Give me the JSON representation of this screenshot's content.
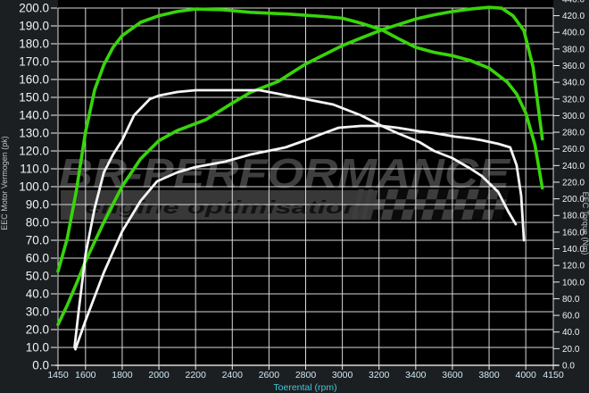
{
  "colors": {
    "plot_bg": "#000000",
    "margin_bg": "#1c1f22",
    "grid": "#d9d9d9",
    "axis_text": "#f2f2f2",
    "x_tick_text": "#cfe9f2",
    "xlabel_text": "#3ec9da",
    "axis_title_text": "#b9c2c5",
    "torque_color": "#38d40a",
    "power_color": "#f5f5f5",
    "watermark_text": "#3f3f3f",
    "watermark_band": "#383838",
    "watermark_subtitle": "#121212",
    "checker_dark": "#0b0b0b",
    "checker_light": "#3d3d3d"
  },
  "chart_data": {
    "type": "line",
    "title": "",
    "xlabel": "Toerental (rpm)",
    "ylabel_left": "EEC Motor Vermogen (pk)",
    "ylabel_right": "EEC Torque (Nm)",
    "xlim": [
      1450,
      4150
    ],
    "ylim_left": [
      0,
      200
    ],
    "ylim_right": [
      0,
      440
    ],
    "grid": true,
    "legend": "none",
    "x_tick_values": [
      1450,
      1600,
      1800,
      2000,
      2200,
      2400,
      2600,
      2800,
      3000,
      3200,
      3400,
      3600,
      3800,
      4000,
      4150
    ],
    "x_tick_labels": [
      "1450",
      "1600",
      "1800",
      "2000",
      "2200",
      "2400",
      "2600",
      "2800",
      "3000",
      "3200",
      "3400",
      "3600",
      "3800",
      "4000",
      "4150"
    ],
    "left_tick_values": [
      0,
      10,
      20,
      30,
      40,
      50,
      60,
      70,
      80,
      90,
      100,
      110,
      120,
      130,
      140,
      150,
      160,
      170,
      180,
      190,
      200
    ],
    "left_tick_labels": [
      "0.0",
      "10.0",
      "20.0",
      "30.0",
      "40.0",
      "50.0",
      "60.0",
      "70.0",
      "80.0",
      "90.0",
      "100.0",
      "110.0",
      "120.0",
      "130.0",
      "140.0",
      "150.0",
      "160.0",
      "170.0",
      "180.0",
      "190.0",
      "200.0"
    ],
    "right_tick_values": [
      0,
      20,
      40,
      60,
      80,
      100,
      120,
      140,
      160,
      180,
      200,
      220,
      240,
      260,
      280,
      300,
      320,
      340,
      360,
      380,
      400,
      420,
      440
    ],
    "right_tick_labels": [
      "0.0",
      "20.0",
      "40.0",
      "60.0",
      "80.0",
      "100.0",
      "120.0",
      "140.0",
      "160.0",
      "180.0",
      "200.0",
      "220.0",
      "240.0",
      "260.0",
      "280.0",
      "300.0",
      "320.0",
      "340.0",
      "360.0",
      "380.0",
      "400.0",
      "420.0",
      "440.0"
    ],
    "watermark": {
      "brand": "BR-Performance",
      "subtitle": "engine optimisation"
    },
    "series": [
      {
        "name": "torque-run-1",
        "axis": "right",
        "unit": "Nm",
        "color_key": "torque_color",
        "width": 3.6,
        "points": [
          [
            1450,
            113
          ],
          [
            1500,
            152
          ],
          [
            1550,
            210
          ],
          [
            1600,
            280
          ],
          [
            1650,
            331
          ],
          [
            1700,
            361
          ],
          [
            1750,
            382
          ],
          [
            1800,
            396
          ],
          [
            1900,
            412
          ],
          [
            2000,
            420
          ],
          [
            2100,
            425
          ],
          [
            2200,
            428
          ],
          [
            2350,
            427
          ],
          [
            2500,
            424
          ],
          [
            2700,
            422
          ],
          [
            2900,
            419
          ],
          [
            3000,
            417
          ],
          [
            3100,
            411
          ],
          [
            3215,
            403
          ],
          [
            3300,
            393
          ],
          [
            3400,
            382
          ],
          [
            3500,
            376
          ],
          [
            3600,
            372
          ],
          [
            3700,
            366
          ],
          [
            3800,
            357
          ],
          [
            3900,
            340
          ],
          [
            3950,
            326
          ],
          [
            4000,
            303
          ],
          [
            4050,
            265
          ],
          [
            4090,
            213
          ]
        ]
      },
      {
        "name": "torque-run-2",
        "axis": "right",
        "unit": "Nm",
        "color_key": "torque_color",
        "width": 3.6,
        "points": [
          [
            1450,
            49
          ],
          [
            1500,
            72
          ],
          [
            1550,
            98
          ],
          [
            1600,
            125
          ],
          [
            1700,
            172
          ],
          [
            1800,
            215
          ],
          [
            1900,
            248
          ],
          [
            2000,
            270
          ],
          [
            2100,
            282
          ],
          [
            2255,
            295
          ],
          [
            2400,
            315
          ],
          [
            2500,
            328
          ],
          [
            2650,
            341
          ],
          [
            2800,
            362
          ],
          [
            3000,
            384
          ],
          [
            3100,
            393
          ],
          [
            3215,
            403
          ],
          [
            3300,
            409
          ],
          [
            3400,
            416
          ],
          [
            3500,
            421
          ],
          [
            3600,
            425
          ],
          [
            3700,
            428
          ],
          [
            3800,
            430
          ],
          [
            3870,
            429
          ],
          [
            3930,
            420
          ],
          [
            3990,
            402
          ],
          [
            4040,
            358
          ],
          [
            4090,
            272
          ]
        ]
      },
      {
        "name": "power-run-1",
        "axis": "left",
        "unit": "pk",
        "color_key": "power_color",
        "width": 2.8,
        "points": [
          [
            1540,
            10
          ],
          [
            1560,
            28
          ],
          [
            1580,
            45
          ],
          [
            1600,
            62
          ],
          [
            1650,
            88
          ],
          [
            1700,
            108
          ],
          [
            1750,
            118
          ],
          [
            1800,
            126
          ],
          [
            1865,
            140
          ],
          [
            1950,
            149
          ],
          [
            2000,
            151
          ],
          [
            2100,
            153
          ],
          [
            2200,
            154
          ],
          [
            2400,
            154
          ],
          [
            2550,
            154
          ],
          [
            2650,
            152
          ],
          [
            2750,
            150
          ],
          [
            2850,
            148
          ],
          [
            2950,
            146
          ],
          [
            3000,
            144
          ],
          [
            3100,
            140
          ],
          [
            3215,
            134
          ],
          [
            3300,
            130
          ],
          [
            3420,
            125
          ],
          [
            3500,
            120
          ],
          [
            3600,
            116
          ],
          [
            3700,
            110
          ],
          [
            3760,
            106
          ],
          [
            3850,
            97
          ],
          [
            3905,
            86
          ],
          [
            3945,
            79
          ]
        ]
      },
      {
        "name": "power-run-2",
        "axis": "left",
        "unit": "pk",
        "color_key": "power_color",
        "width": 2.8,
        "points": [
          [
            1545,
            9
          ],
          [
            1600,
            25
          ],
          [
            1700,
            52
          ],
          [
            1800,
            75
          ],
          [
            1900,
            92
          ],
          [
            1990,
            103
          ],
          [
            2100,
            108
          ],
          [
            2200,
            111
          ],
          [
            2360,
            114
          ],
          [
            2500,
            118
          ],
          [
            2690,
            122
          ],
          [
            2800,
            126
          ],
          [
            2900,
            130
          ],
          [
            2980,
            133
          ],
          [
            3100,
            134
          ],
          [
            3215,
            134
          ],
          [
            3300,
            133
          ],
          [
            3420,
            131
          ],
          [
            3500,
            130
          ],
          [
            3615,
            128
          ],
          [
            3700,
            127
          ],
          [
            3760,
            126
          ],
          [
            3850,
            124
          ],
          [
            3915,
            122
          ],
          [
            3950,
            112
          ],
          [
            3975,
            95
          ],
          [
            3990,
            70
          ]
        ]
      }
    ]
  }
}
